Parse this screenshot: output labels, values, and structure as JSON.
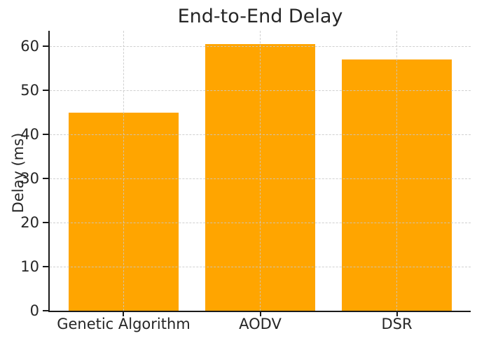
{
  "chart_data": {
    "type": "bar",
    "title": "End-to-End Delay",
    "ylabel": "Delay (ms)",
    "xlabel": "",
    "categories": [
      "Genetic Algorithm",
      "AODV",
      "DSR"
    ],
    "values": [
      45,
      60.5,
      57
    ],
    "yticks": [
      0,
      10,
      20,
      30,
      40,
      50,
      60
    ],
    "ylim": [
      0,
      63.5
    ],
    "grid": "dashed",
    "grid_on_top": true,
    "legend": "none",
    "bar_color": "#FFA500",
    "gridline_color": "#c9c9c9",
    "spine_color": "#1a1a1a",
    "text_color": "#262626",
    "background_color": "#ffffff"
  }
}
